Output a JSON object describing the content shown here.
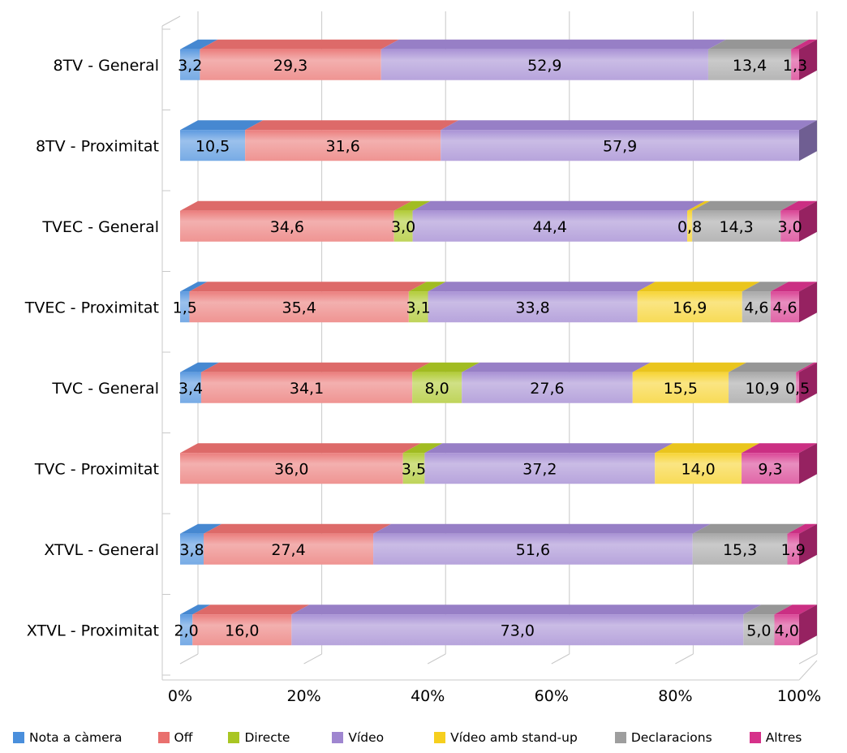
{
  "chart_data": {
    "type": "bar",
    "orientation": "horizontal",
    "stacked": true,
    "percent_stacked": true,
    "three_d": true,
    "categories": [
      "8TV - General",
      "8TV - Proximitat",
      "TVEC - General",
      "TVEC - Proximitat",
      "TVC - General",
      "TVC - Proximitat",
      "XTVL - General",
      "XTVL - Proximitat"
    ],
    "series": [
      {
        "name": "Nota a càmera",
        "color": "#4a8fdc",
        "values": [
          3.2,
          10.5,
          0,
          1.5,
          3.4,
          0,
          3.8,
          2.0
        ],
        "labels": [
          "3,2",
          "10,5",
          "",
          "1,5",
          "3,4",
          "",
          "3,8",
          "2,0"
        ]
      },
      {
        "name": "Off",
        "color": "#e9706e",
        "values": [
          29.3,
          31.6,
          34.6,
          35.4,
          34.1,
          36.0,
          27.4,
          16.0
        ],
        "labels": [
          "29,3",
          "31,6",
          "34,6",
          "35,4",
          "34,1",
          "36,0",
          "27,4",
          "16,0"
        ]
      },
      {
        "name": "Directe",
        "color": "#a9c623",
        "values": [
          0,
          0,
          3.0,
          3.1,
          8.0,
          3.5,
          0,
          0
        ],
        "labels": [
          "",
          "",
          "3,0",
          "3,1",
          "8,0",
          "3,5",
          "",
          ""
        ]
      },
      {
        "name": "Vídeo",
        "color": "#9f86d0",
        "values": [
          52.9,
          57.9,
          44.4,
          33.8,
          27.6,
          37.2,
          51.6,
          73.0
        ],
        "labels": [
          "52,9",
          "57,9",
          "44,4",
          "33,8",
          "27,6",
          "37,2",
          "51,6",
          "73,0"
        ]
      },
      {
        "name": "Vídeo amb stand-up",
        "color": "#f6cf1e",
        "values": [
          0,
          0,
          0.8,
          16.9,
          15.5,
          14.0,
          0,
          0
        ],
        "labels": [
          "",
          "",
          "0,8",
          "16,9",
          "15,5",
          "14,0",
          "",
          ""
        ]
      },
      {
        "name": "Declaracions",
        "color": "#9e9e9e",
        "values": [
          13.4,
          0,
          14.3,
          4.6,
          10.9,
          0,
          15.3,
          5.0
        ],
        "labels": [
          "13,4",
          "",
          "14,3",
          "4,6",
          "10,9",
          "",
          "15,3",
          "5,0"
        ]
      },
      {
        "name": "Altres",
        "color": "#d6318a",
        "values": [
          1.3,
          0,
          3.0,
          4.6,
          0.5,
          9.3,
          1.9,
          4.0
        ],
        "labels": [
          "1,3",
          "",
          "3,0",
          "4,6",
          "0,5",
          "9,3",
          "1,9",
          "4,0"
        ]
      }
    ],
    "x_ticks": [
      "0%",
      "20%",
      "40%",
      "60%",
      "80%",
      "100%"
    ],
    "xlim": [
      0,
      100
    ],
    "grid": true,
    "legend_position": "bottom"
  }
}
